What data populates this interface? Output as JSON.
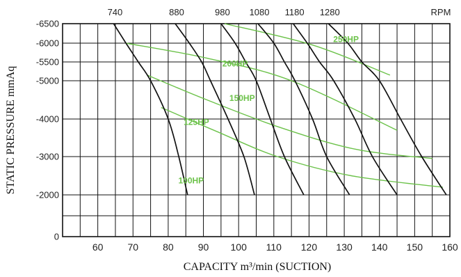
{
  "chart_data": {
    "type": "line",
    "xlabel": "CAPACITY m³/min (SUCTION)",
    "ylabel": "STATIC PRESSURE mmAq",
    "rpm_header": "RPM",
    "xlim": [
      50,
      160
    ],
    "ylim": [
      0,
      -6500
    ],
    "x_ticks": [
      60,
      70,
      80,
      90,
      100,
      110,
      120,
      130,
      140,
      150,
      160
    ],
    "y_ticks": [
      {
        "value": 0,
        "label": "0"
      },
      {
        "value": -2000,
        "label": "-2000"
      },
      {
        "value": -3000,
        "label": "-3000"
      },
      {
        "value": -4000,
        "label": "-4000"
      },
      {
        "value": -5000,
        "label": "-5000"
      },
      {
        "value": -5500,
        "label": "-5500"
      },
      {
        "value": -6000,
        "label": "-6000"
      },
      {
        "value": -6500,
        "label": "-6500"
      }
    ],
    "grid": true,
    "rpm_series": [
      {
        "name": "740",
        "color": "#111111",
        "points": [
          [
            64.5,
            -6500
          ],
          [
            68,
            -6000
          ],
          [
            71.5,
            -5500
          ],
          [
            75,
            -5000
          ],
          [
            80,
            -4000
          ],
          [
            83,
            -3000
          ],
          [
            85.5,
            -2000
          ]
        ]
      },
      {
        "name": "880",
        "color": "#111111",
        "points": [
          [
            82,
            -6500
          ],
          [
            86,
            -6000
          ],
          [
            89.5,
            -5500
          ],
          [
            92,
            -5000
          ],
          [
            97,
            -4000
          ],
          [
            101.5,
            -3000
          ],
          [
            104.5,
            -2000
          ]
        ]
      },
      {
        "name": "980",
        "color": "#111111",
        "points": [
          [
            95,
            -6500
          ],
          [
            99,
            -6000
          ],
          [
            102,
            -5500
          ],
          [
            105,
            -5000
          ],
          [
            109,
            -4000
          ],
          [
            113,
            -3000
          ],
          [
            118.5,
            -2000
          ]
        ]
      },
      {
        "name": "1080",
        "color": "#111111",
        "points": [
          [
            105.5,
            -6500
          ],
          [
            110,
            -6000
          ],
          [
            113,
            -5500
          ],
          [
            116,
            -5000
          ],
          [
            121,
            -4000
          ],
          [
            125,
            -3000
          ],
          [
            131.5,
            -2000
          ]
        ]
      },
      {
        "name": "1180",
        "color": "#111111",
        "points": [
          [
            115.5,
            -6500
          ],
          [
            119.5,
            -6000
          ],
          [
            123,
            -5500
          ],
          [
            127,
            -5000
          ],
          [
            133,
            -4000
          ],
          [
            138,
            -3000
          ],
          [
            145,
            -2000
          ]
        ]
      },
      {
        "name": "1280",
        "color": "#111111",
        "points": [
          [
            125.5,
            -6500
          ],
          [
            131,
            -6000
          ],
          [
            135,
            -5500
          ],
          [
            140,
            -5000
          ],
          [
            146,
            -4000
          ],
          [
            152,
            -3000
          ],
          [
            159,
            -2000
          ]
        ]
      }
    ],
    "hp_series": [
      {
        "name": "250HP",
        "color": "#6cc24a",
        "points": [
          [
            96,
            -6500
          ],
          [
            121,
            -5950
          ],
          [
            143,
            -5150
          ]
        ]
      },
      {
        "name": "200HP",
        "color": "#6cc24a",
        "points": [
          [
            68,
            -6000
          ],
          [
            91,
            -5600
          ],
          [
            115,
            -5000
          ],
          [
            145,
            -3700
          ]
        ]
      },
      {
        "name": "150HP",
        "color": "#6cc24a",
        "points": [
          [
            74,
            -5150
          ],
          [
            91,
            -4500
          ],
          [
            111,
            -3800
          ],
          [
            133,
            -3200
          ],
          [
            155,
            -2950
          ]
        ]
      },
      {
        "name": "125HP",
        "color": "#6cc24a",
        "points": [
          [
            78,
            -4300
          ],
          [
            93,
            -3700
          ],
          [
            111,
            -3000
          ],
          [
            132,
            -2500
          ],
          [
            158,
            -2200
          ]
        ]
      },
      {
        "name": "100HP",
        "color": "#6cc24a",
        "points": []
      }
    ],
    "hp_label_positions": [
      {
        "text": "250HP",
        "x": 130.5,
        "y": -6100
      },
      {
        "text": "200HP",
        "x": 99,
        "y": -5450
      },
      {
        "text": "150HP",
        "x": 101,
        "y": -4550
      },
      {
        "text": "125HP",
        "x": 88,
        "y": -3920
      },
      {
        "text": "100HP",
        "x": 86.5,
        "y": -2370
      }
    ]
  }
}
